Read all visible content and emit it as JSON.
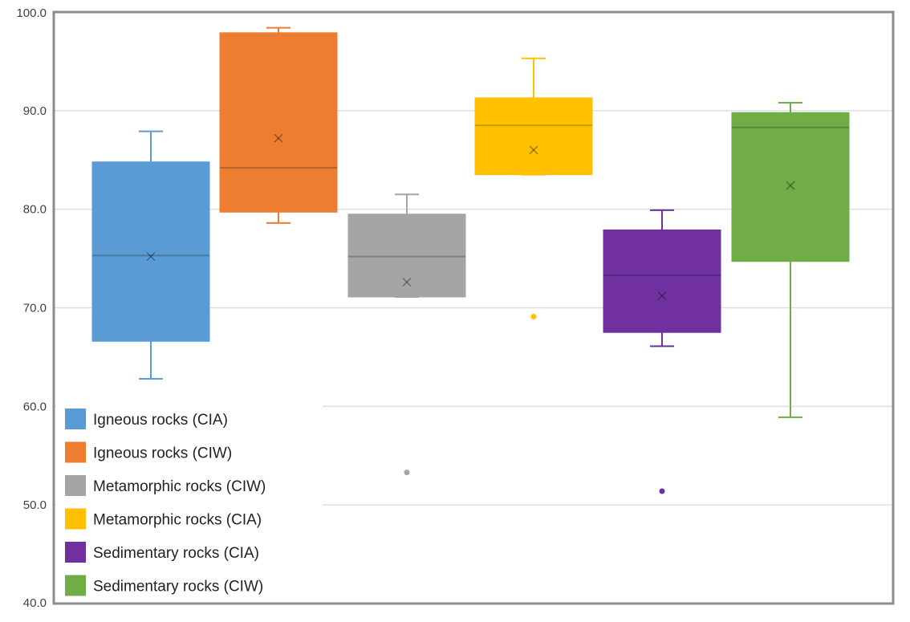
{
  "chart_data": {
    "type": "box",
    "ylim": [
      40,
      100
    ],
    "yticks": [
      "40.0",
      "50.0",
      "60.0",
      "70.0",
      "80.0",
      "90.0",
      "100.0"
    ],
    "grid": true,
    "legend_position": "bottom-left",
    "series": [
      {
        "name": "Igneous rocks (CIA)",
        "color": "#5b9bd5",
        "min": 62.8,
        "q1": 66.6,
        "median": 75.3,
        "q3": 84.8,
        "max": 87.9,
        "mean": 75.2,
        "outliers": []
      },
      {
        "name": "Igneous rocks (CIW)",
        "color": "#ed7d31",
        "min": 78.6,
        "q1": 79.7,
        "median": 84.2,
        "q3": 97.9,
        "max": 98.4,
        "mean": 87.2,
        "outliers": []
      },
      {
        "name": "Metamorphic rocks (CIW)",
        "color": "#a5a5a5",
        "min": 71.1,
        "q1": 71.1,
        "median": 75.2,
        "q3": 79.5,
        "max": 81.5,
        "mean": 72.6,
        "outliers": [
          53.3
        ]
      },
      {
        "name": "Metamorphic rocks (CIA)",
        "color": "#ffc000",
        "min": 83.5,
        "q1": 83.5,
        "median": 88.5,
        "q3": 91.3,
        "max": 95.3,
        "mean": 86.0,
        "outliers": [
          69.1
        ]
      },
      {
        "name": "Sedimentary rocks (CIA)",
        "color": "#7030a0",
        "min": 66.1,
        "q1": 67.5,
        "median": 73.3,
        "q3": 77.9,
        "max": 79.9,
        "mean": 71.2,
        "outliers": [
          51.4
        ]
      },
      {
        "name": "Sedimentary rocks (CIW)",
        "color": "#70ad47",
        "min": 58.9,
        "q1": 74.7,
        "median": 88.3,
        "q3": 89.8,
        "max": 90.8,
        "mean": 82.4,
        "outliers": []
      }
    ]
  }
}
